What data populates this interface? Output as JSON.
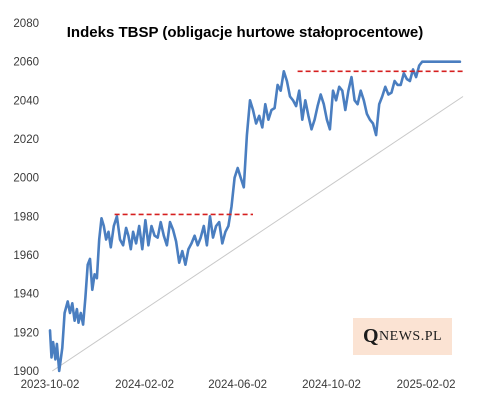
{
  "chart_data": {
    "type": "line",
    "title": "Indeks TBSP (obligacje  hurtowe stałoprocentowe)",
    "xlabel": "",
    "ylabel": "",
    "ylim": [
      1900,
      2080
    ],
    "yticks": [
      1900,
      1920,
      1940,
      1960,
      1980,
      2000,
      2020,
      2040,
      2060,
      2080
    ],
    "xlim": [
      "2023-10-02",
      "2025-03-22"
    ],
    "xticks": [
      "2023-10-02",
      "2024-02-02",
      "2024-06-02",
      "2024-10-02",
      "2025-02-02"
    ],
    "grid": false,
    "legend": "none",
    "series": [
      {
        "x": [
          "2023-10-02",
          "2023-10-04",
          "2023-10-06",
          "2023-10-09",
          "2023-10-11",
          "2023-10-14",
          "2023-10-18",
          "2023-10-21",
          "2023-10-25",
          "2023-10-28",
          "2023-10-31",
          "2023-11-03",
          "2023-11-06",
          "2023-11-08",
          "2023-11-11",
          "2023-11-14",
          "2023-11-17",
          "2023-11-20",
          "2023-11-23",
          "2023-11-26",
          "2023-11-29",
          "2023-12-02",
          "2023-12-05",
          "2023-12-08",
          "2023-12-11",
          "2023-12-14",
          "2023-12-17",
          "2023-12-20",
          "2023-12-24",
          "2023-12-28",
          "2024-01-01",
          "2024-01-05",
          "2024-01-09",
          "2024-01-12",
          "2024-01-15",
          "2024-01-18",
          "2024-01-22",
          "2024-01-26",
          "2024-01-30",
          "2024-02-03",
          "2024-02-07",
          "2024-02-11",
          "2024-02-15",
          "2024-02-19",
          "2024-02-23",
          "2024-02-27",
          "2024-03-02",
          "2024-03-06",
          "2024-03-10",
          "2024-03-14",
          "2024-03-18",
          "2024-03-22",
          "2024-03-26",
          "2024-03-30",
          "2024-04-03",
          "2024-04-07",
          "2024-04-11",
          "2024-04-15",
          "2024-04-19",
          "2024-04-23",
          "2024-04-27",
          "2024-05-01",
          "2024-05-05",
          "2024-05-09",
          "2024-05-13",
          "2024-05-17",
          "2024-05-21",
          "2024-05-25",
          "2024-05-29",
          "2024-06-02",
          "2024-06-06",
          "2024-06-10",
          "2024-06-14",
          "2024-06-18",
          "2024-06-22",
          "2024-06-26",
          "2024-06-30",
          "2024-07-04",
          "2024-07-08",
          "2024-07-12",
          "2024-07-16",
          "2024-07-20",
          "2024-07-24",
          "2024-07-28",
          "2024-08-01",
          "2024-08-05",
          "2024-08-09",
          "2024-08-13",
          "2024-08-17",
          "2024-08-21",
          "2024-08-25",
          "2024-08-29",
          "2024-09-02",
          "2024-09-06",
          "2024-09-10",
          "2024-09-14",
          "2024-09-18",
          "2024-09-22",
          "2024-09-26",
          "2024-09-30",
          "2024-10-04",
          "2024-10-08",
          "2024-10-12",
          "2024-10-16",
          "2024-10-20",
          "2024-10-24",
          "2024-10-28",
          "2024-11-01",
          "2024-11-05",
          "2024-11-09",
          "2024-11-13",
          "2024-11-17",
          "2024-11-21",
          "2024-11-25",
          "2024-11-29",
          "2024-12-03",
          "2024-12-07",
          "2024-12-11",
          "2024-12-15",
          "2024-12-19",
          "2024-12-23",
          "2024-12-27",
          "2024-12-31",
          "2025-01-04",
          "2025-01-08",
          "2025-01-12",
          "2025-01-16",
          "2025-01-20",
          "2025-01-24",
          "2025-01-28",
          "2025-02-01",
          "2025-02-05",
          "2025-02-09",
          "2025-02-13",
          "2025-02-17",
          "2025-02-21",
          "2025-02-25",
          "2025-03-01",
          "2025-03-05",
          "2025-03-09",
          "2025-03-13",
          "2025-03-16",
          "2025-03-18"
        ],
        "values": [
          1921,
          1907,
          1915,
          1906,
          1914,
          1900,
          1912,
          1930,
          1936,
          1930,
          1935,
          1926,
          1932,
          1925,
          1930,
          1924,
          1938,
          1955,
          1958,
          1942,
          1950,
          1948,
          1968,
          1979,
          1975,
          1968,
          1972,
          1964,
          1975,
          1980,
          1968,
          1965,
          1974,
          1970,
          1963,
          1972,
          1966,
          1975,
          1963,
          1978,
          1965,
          1975,
          1970,
          1969,
          1977,
          1970,
          1965,
          1977,
          1973,
          1967,
          1956,
          1962,
          1955,
          1963,
          1966,
          1970,
          1965,
          1969,
          1975,
          1965,
          1980,
          1969,
          1975,
          1977,
          1966,
          1972,
          1975,
          1985,
          2000,
          2005,
          2000,
          1995,
          2022,
          2040,
          2035,
          2028,
          2032,
          2026,
          2038,
          2030,
          2035,
          2036,
          2048,
          2045,
          2055,
          2050,
          2042,
          2040,
          2037,
          2045,
          2030,
          2040,
          2032,
          2025,
          2030,
          2037,
          2043,
          2038,
          2030,
          2025,
          2045,
          2040,
          2047,
          2045,
          2035,
          2045,
          2052,
          2040,
          2038,
          2045,
          2040,
          2033,
          2030,
          2028,
          2022,
          2038,
          2042,
          2047,
          2043,
          2044,
          2050,
          2048,
          2048,
          2054,
          2051,
          2050,
          2056,
          2052,
          2058,
          2060,
          2060,
          2060,
          2060,
          2060,
          2060,
          2060,
          2060,
          2060,
          2060,
          2060,
          2060,
          2060,
          2060
        ]
      },
      {
        "x": [
          "2023-12-25",
          "2024-06-22"
        ],
        "values": [
          1981,
          1981
        ]
      },
      {
        "x": [
          "2024-08-19",
          "2025-03-22"
        ],
        "values": [
          2055,
          2055
        ]
      },
      {
        "x": [
          "2023-10-05",
          "2025-03-22"
        ],
        "values": [
          1900,
          2042
        ]
      }
    ]
  },
  "colors": {
    "line": "#4a7ec0",
    "resistance": "#d62020",
    "trend": "#c8c8c8"
  },
  "logo": {
    "big_letter": "Q",
    "rest": "NEWS.PL"
  }
}
